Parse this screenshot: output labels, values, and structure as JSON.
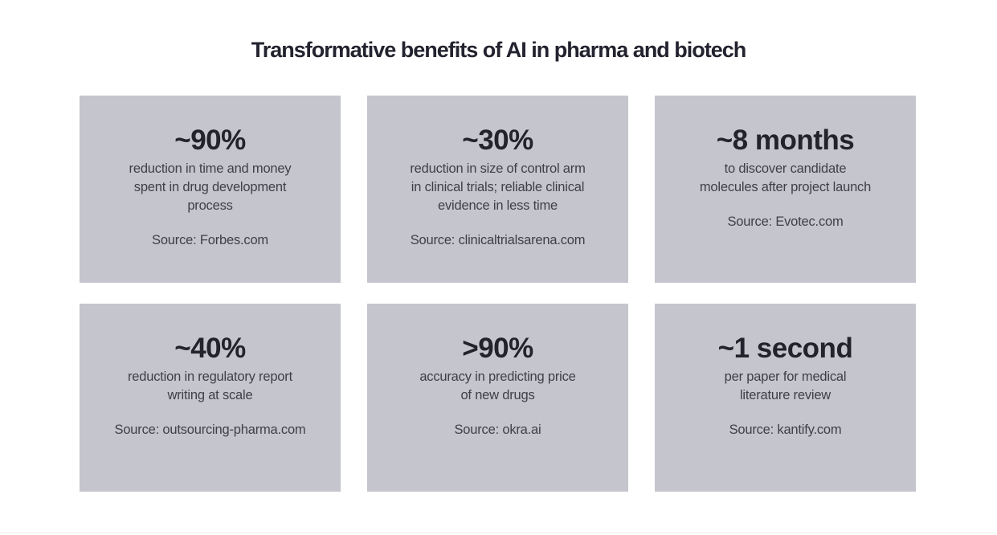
{
  "title": "Transformative benefits of AI in pharma and biotech",
  "colors": {
    "page_bg": "#ffffff",
    "card_bg": "#c5c5cd",
    "title": "#23232f",
    "stat": "#23232e",
    "body": "#3f3f4b"
  },
  "cards": [
    {
      "stat": "~90%",
      "description": "reduction in time and money\nspent in drug development\nprocess",
      "source": "Source: Forbes.com"
    },
    {
      "stat": "~30%",
      "description": "reduction in size of control arm\nin clinical trials; reliable clinical\nevidence in less time",
      "source": "Source: clinicaltrialsarena.com"
    },
    {
      "stat": "~8 months",
      "description": "to discover candidate\nmolecules after project launch",
      "source": "Source: Evotec.com"
    },
    {
      "stat": "~40%",
      "description": "reduction in regulatory report\nwriting at scale",
      "source": "Source: outsourcing-pharma.com"
    },
    {
      "stat": ">90%",
      "description": "accuracy in predicting price\nof new drugs",
      "source": "Source: okra.ai"
    },
    {
      "stat": "~1 second",
      "description": "per paper for medical\nliterature review",
      "source": "Source: kantify.com"
    }
  ]
}
